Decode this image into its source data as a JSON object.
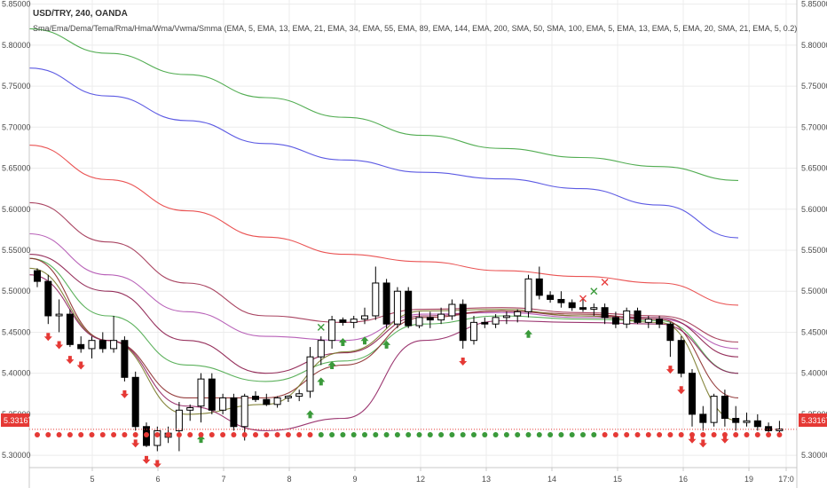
{
  "chart_data": {
    "type": "candlestick",
    "symbol": "USD/TRY, 240, OANDA",
    "indicator_label": "Sma/Ema/Dema/Tema/Rma/Hma/Wma/Vwma/Smma (EMA, 5, EMA, 13, EMA, 21, EMA, 34, EMA, 55, EMA, 89, EMA, 144, EMA, 200, SMA, 50, SMA, 100, EMA, 5, EMA, 13, EMA, 5, EMA, 20, SMA, 21, EMA, 5, 0.2)",
    "last_price": "5.33167",
    "ylim": [
      5.285,
      5.855
    ],
    "y_ticks": [
      "5.85000",
      "5.80000",
      "5.75000",
      "5.70000",
      "5.65000",
      "5.60000",
      "5.55000",
      "5.50000",
      "5.45000",
      "5.40000",
      "5.35000",
      "5.30000"
    ],
    "x_ticks": [
      "5",
      "6",
      "7",
      "8",
      "9",
      "12",
      "13",
      "14",
      "15",
      "16",
      "19",
      "17:0"
    ],
    "grid": true,
    "candles": [
      {
        "o": 5.525,
        "h": 5.528,
        "l": 5.505,
        "c": 5.512
      },
      {
        "o": 5.512,
        "h": 5.52,
        "l": 5.46,
        "c": 5.47
      },
      {
        "o": 5.47,
        "h": 5.49,
        "l": 5.45,
        "c": 5.472
      },
      {
        "o": 5.472,
        "h": 5.478,
        "l": 5.432,
        "c": 5.435
      },
      {
        "o": 5.435,
        "h": 5.445,
        "l": 5.425,
        "c": 5.43
      },
      {
        "o": 5.43,
        "h": 5.445,
        "l": 5.418,
        "c": 5.44
      },
      {
        "o": 5.44,
        "h": 5.45,
        "l": 5.425,
        "c": 5.43
      },
      {
        "o": 5.43,
        "h": 5.47,
        "l": 5.425,
        "c": 5.44
      },
      {
        "o": 5.44,
        "h": 5.445,
        "l": 5.39,
        "c": 5.395
      },
      {
        "o": 5.395,
        "h": 5.402,
        "l": 5.33,
        "c": 5.335
      },
      {
        "o": 5.335,
        "h": 5.34,
        "l": 5.31,
        "c": 5.312
      },
      {
        "o": 5.312,
        "h": 5.335,
        "l": 5.305,
        "c": 5.33
      },
      {
        "o": 5.322,
        "h": 5.335,
        "l": 5.315,
        "c": 5.327
      },
      {
        "o": 5.33,
        "h": 5.365,
        "l": 5.305,
        "c": 5.355
      },
      {
        "o": 5.355,
        "h": 5.362,
        "l": 5.342,
        "c": 5.358
      },
      {
        "o": 5.36,
        "h": 5.4,
        "l": 5.34,
        "c": 5.393
      },
      {
        "o": 5.393,
        "h": 5.4,
        "l": 5.35,
        "c": 5.355
      },
      {
        "o": 5.355,
        "h": 5.375,
        "l": 5.35,
        "c": 5.37
      },
      {
        "o": 5.37,
        "h": 5.375,
        "l": 5.33,
        "c": 5.335
      },
      {
        "o": 5.335,
        "h": 5.375,
        "l": 5.318,
        "c": 5.372
      },
      {
        "o": 5.372,
        "h": 5.378,
        "l": 5.365,
        "c": 5.368
      },
      {
        "o": 5.368,
        "h": 5.375,
        "l": 5.36,
        "c": 5.362
      },
      {
        "o": 5.362,
        "h": 5.372,
        "l": 5.358,
        "c": 5.37
      },
      {
        "o": 5.37,
        "h": 5.373,
        "l": 5.365,
        "c": 5.372
      },
      {
        "o": 5.372,
        "h": 5.38,
        "l": 5.366,
        "c": 5.375
      },
      {
        "o": 5.378,
        "h": 5.432,
        "l": 5.37,
        "c": 5.42
      },
      {
        "o": 5.42,
        "h": 5.445,
        "l": 5.41,
        "c": 5.44
      },
      {
        "o": 5.44,
        "h": 5.47,
        "l": 5.43,
        "c": 5.465
      },
      {
        "o": 5.465,
        "h": 5.468,
        "l": 5.458,
        "c": 5.462
      },
      {
        "o": 5.462,
        "h": 5.47,
        "l": 5.455,
        "c": 5.466
      },
      {
        "o": 5.466,
        "h": 5.48,
        "l": 5.46,
        "c": 5.47
      },
      {
        "o": 5.47,
        "h": 5.53,
        "l": 5.465,
        "c": 5.51
      },
      {
        "o": 5.51,
        "h": 5.515,
        "l": 5.455,
        "c": 5.46
      },
      {
        "o": 5.46,
        "h": 5.505,
        "l": 5.455,
        "c": 5.5
      },
      {
        "o": 5.5,
        "h": 5.505,
        "l": 5.455,
        "c": 5.458
      },
      {
        "o": 5.458,
        "h": 5.475,
        "l": 5.455,
        "c": 5.468
      },
      {
        "o": 5.468,
        "h": 5.475,
        "l": 5.455,
        "c": 5.465
      },
      {
        "o": 5.465,
        "h": 5.48,
        "l": 5.46,
        "c": 5.472
      },
      {
        "o": 5.47,
        "h": 5.49,
        "l": 5.465,
        "c": 5.484
      },
      {
        "o": 5.484,
        "h": 5.49,
        "l": 5.43,
        "c": 5.44
      },
      {
        "o": 5.44,
        "h": 5.47,
        "l": 5.435,
        "c": 5.462
      },
      {
        "o": 5.462,
        "h": 5.468,
        "l": 5.455,
        "c": 5.46
      },
      {
        "o": 5.46,
        "h": 5.472,
        "l": 5.455,
        "c": 5.468
      },
      {
        "o": 5.468,
        "h": 5.475,
        "l": 5.46,
        "c": 5.47
      },
      {
        "o": 5.47,
        "h": 5.478,
        "l": 5.462,
        "c": 5.475
      },
      {
        "o": 5.475,
        "h": 5.52,
        "l": 5.468,
        "c": 5.515
      },
      {
        "o": 5.515,
        "h": 5.53,
        "l": 5.49,
        "c": 5.495
      },
      {
        "o": 5.495,
        "h": 5.5,
        "l": 5.486,
        "c": 5.49
      },
      {
        "o": 5.49,
        "h": 5.5,
        "l": 5.48,
        "c": 5.486
      },
      {
        "o": 5.486,
        "h": 5.49,
        "l": 5.476,
        "c": 5.48
      },
      {
        "o": 5.48,
        "h": 5.49,
        "l": 5.475,
        "c": 5.478
      },
      {
        "o": 5.478,
        "h": 5.485,
        "l": 5.47,
        "c": 5.48
      },
      {
        "o": 5.48,
        "h": 5.485,
        "l": 5.46,
        "c": 5.468
      },
      {
        "o": 5.468,
        "h": 5.475,
        "l": 5.455,
        "c": 5.46
      },
      {
        "o": 5.46,
        "h": 5.48,
        "l": 5.455,
        "c": 5.476
      },
      {
        "o": 5.476,
        "h": 5.48,
        "l": 5.46,
        "c": 5.462
      },
      {
        "o": 5.462,
        "h": 5.47,
        "l": 5.455,
        "c": 5.466
      },
      {
        "o": 5.466,
        "h": 5.47,
        "l": 5.455,
        "c": 5.46
      },
      {
        "o": 5.46,
        "h": 5.462,
        "l": 5.42,
        "c": 5.44
      },
      {
        "o": 5.44,
        "h": 5.445,
        "l": 5.395,
        "c": 5.4
      },
      {
        "o": 5.4,
        "h": 5.405,
        "l": 5.335,
        "c": 5.35
      },
      {
        "o": 5.35,
        "h": 5.36,
        "l": 5.33,
        "c": 5.34
      },
      {
        "o": 5.34,
        "h": 5.375,
        "l": 5.335,
        "c": 5.372
      },
      {
        "o": 5.372,
        "h": 5.38,
        "l": 5.335,
        "c": 5.345
      },
      {
        "o": 5.345,
        "h": 5.36,
        "l": 5.33,
        "c": 5.34
      },
      {
        "o": 5.34,
        "h": 5.352,
        "l": 5.335,
        "c": 5.342
      },
      {
        "o": 5.342,
        "h": 5.35,
        "l": 5.33,
        "c": 5.335
      },
      {
        "o": 5.335,
        "h": 5.34,
        "l": 5.325,
        "c": 5.33
      },
      {
        "o": 5.33,
        "h": 5.342,
        "l": 5.325,
        "c": 5.332
      }
    ],
    "series": [
      {
        "color": "#3fa43f",
        "values": [
          5.82,
          5.79,
          5.764,
          5.736,
          5.712,
          5.69,
          5.674,
          5.663,
          5.652,
          5.635
        ]
      },
      {
        "color": "#4a48e0",
        "values": [
          5.772,
          5.738,
          5.708,
          5.68,
          5.66,
          5.645,
          5.637,
          5.625,
          5.605,
          5.565
        ]
      },
      {
        "color": "#e84040",
        "values": [
          5.678,
          5.636,
          5.598,
          5.566,
          5.545,
          5.536,
          5.525,
          5.518,
          5.51,
          5.483
        ]
      },
      {
        "color": "#a03050",
        "values": [
          5.608,
          5.56,
          5.51,
          5.47,
          5.462,
          5.478,
          5.48,
          5.474,
          5.47,
          5.438
        ]
      },
      {
        "color": "#b050b0",
        "values": [
          5.57,
          5.52,
          5.475,
          5.445,
          5.44,
          5.472,
          5.474,
          5.468,
          5.466,
          5.43
        ]
      },
      {
        "color": "#8b1a4a",
        "values": [
          5.545,
          5.5,
          5.44,
          5.4,
          5.425,
          5.47,
          5.476,
          5.47,
          5.468,
          5.42
        ]
      },
      {
        "color": "#4aa84a",
        "values": [
          5.54,
          5.47,
          5.41,
          5.39,
          5.415,
          5.46,
          5.47,
          5.466,
          5.464,
          5.4
        ]
      },
      {
        "color": "#8b2a2a",
        "values": [
          5.54,
          5.44,
          5.37,
          5.37,
          5.41,
          5.468,
          5.476,
          5.472,
          5.466,
          5.37
        ]
      },
      {
        "color": "#7a7a2a",
        "values": [
          5.528,
          5.44,
          5.35,
          5.362,
          5.426,
          5.476,
          5.478,
          5.47,
          5.462,
          5.342
        ]
      },
      {
        "color": "#902060",
        "values": [
          5.52,
          5.44,
          5.36,
          5.33,
          5.345,
          5.44,
          5.464,
          5.462,
          5.46,
          5.4
        ]
      }
    ],
    "dots": [
      "r",
      "r",
      "r",
      "r",
      "r",
      "r",
      "r",
      "r",
      "r",
      "r",
      "r",
      "r",
      "r",
      "r",
      "r",
      "r",
      "r",
      "r",
      "r",
      "r",
      "r",
      "r",
      "r",
      "r",
      "r",
      "r",
      "g",
      "g",
      "g",
      "g",
      "g",
      "g",
      "g",
      "g",
      "g",
      "g",
      "g",
      "g",
      "g",
      "g",
      "g",
      "g",
      "g",
      "g",
      "g",
      "g",
      "g",
      "g",
      "g",
      "g",
      "g",
      "g",
      "r",
      "r",
      "r",
      "r",
      "r",
      "r",
      "r",
      "r",
      "r",
      "r",
      "r",
      "r",
      "r",
      "r",
      "r",
      "r",
      "r"
    ],
    "markers": [
      {
        "i": 1,
        "t": "down"
      },
      {
        "i": 2,
        "t": "down"
      },
      {
        "i": 3,
        "t": "down"
      },
      {
        "i": 4,
        "t": "down"
      },
      {
        "i": 8,
        "t": "down"
      },
      {
        "i": 9,
        "t": "down"
      },
      {
        "i": 10,
        "t": "down"
      },
      {
        "i": 11,
        "t": "down"
      },
      {
        "i": 15,
        "t": "up"
      },
      {
        "i": 25,
        "t": "up"
      },
      {
        "i": 26,
        "t": "up"
      },
      {
        "i": 27,
        "t": "up"
      },
      {
        "i": 28,
        "t": "up"
      },
      {
        "i": 30,
        "t": "up"
      },
      {
        "i": 32,
        "t": "up"
      },
      {
        "i": 39,
        "t": "down"
      },
      {
        "i": 45,
        "t": "up"
      },
      {
        "i": 58,
        "t": "down"
      },
      {
        "i": 59,
        "t": "down"
      },
      {
        "i": 60,
        "t": "down"
      },
      {
        "i": 61,
        "t": "down"
      },
      {
        "i": 63,
        "t": "down"
      }
    ],
    "crosses": [
      {
        "i": 26,
        "y": 5.456,
        "color": "#3a9a3a"
      },
      {
        "i": 50,
        "y": 5.491,
        "color": "#e84040"
      },
      {
        "i": 51,
        "y": 5.5,
        "color": "#3a9a3a"
      },
      {
        "i": 52,
        "y": 5.511,
        "color": "#e84040"
      }
    ]
  }
}
